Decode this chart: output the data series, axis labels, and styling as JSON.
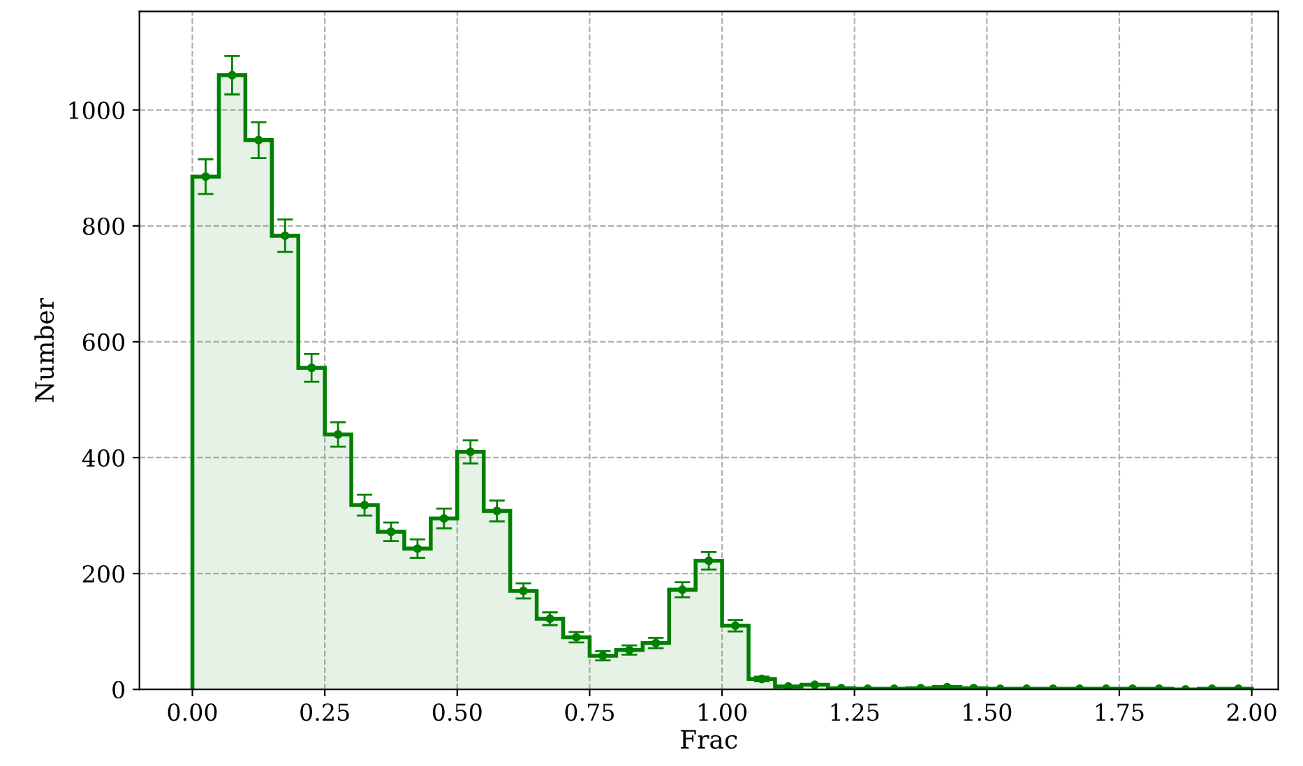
{
  "chart_data": {
    "type": "histogram",
    "xlabel": "Frac",
    "ylabel": "Number",
    "bins": [
      0.0,
      0.05,
      0.1,
      0.15,
      0.2,
      0.25,
      0.3,
      0.35,
      0.4,
      0.45,
      0.5,
      0.55,
      0.6,
      0.65,
      0.7,
      0.75,
      0.8,
      0.85,
      0.9,
      0.95,
      1.0,
      1.05,
      1.1,
      1.15,
      1.2,
      1.25,
      1.3,
      1.35,
      1.4,
      1.45,
      1.5,
      1.55,
      1.6,
      1.65,
      1.7,
      1.75,
      1.8,
      1.85,
      1.9,
      1.95,
      2.0
    ],
    "series": [
      {
        "color": "#008000",
        "values": [
          885,
          1060,
          948,
          783,
          555,
          440,
          318,
          272,
          243,
          295,
          410,
          308,
          170,
          122,
          90,
          58,
          68,
          80,
          172,
          222,
          110,
          18,
          5,
          8,
          2,
          1,
          1,
          2,
          4,
          2,
          1,
          1,
          1,
          1,
          1,
          1,
          1,
          0,
          1,
          1
        ]
      },
      {
        "type": "scatter",
        "color": "#008000",
        "x": [
          0.025,
          0.075,
          0.125,
          0.175,
          0.225,
          0.275,
          0.325,
          0.375,
          0.425,
          0.475,
          0.525,
          0.575,
          0.625,
          0.675,
          0.725,
          0.775,
          0.825,
          0.875,
          0.925,
          0.975,
          1.025,
          1.075,
          1.125,
          1.175,
          1.225,
          1.275,
          1.325,
          1.375,
          1.425,
          1.475,
          1.525,
          1.575,
          1.625,
          1.675,
          1.725,
          1.775,
          1.825,
          1.875,
          1.925,
          1.975
        ],
        "values": [
          885,
          1060,
          948,
          783,
          555,
          440,
          318,
          272,
          243,
          295,
          410,
          308,
          170,
          122,
          90,
          58,
          68,
          80,
          172,
          222,
          110,
          18,
          5,
          8,
          2,
          1,
          1,
          2,
          4,
          2,
          1,
          1,
          1,
          1,
          1,
          1,
          1,
          0,
          1,
          1
        ],
        "errors": [
          30,
          33,
          31,
          28,
          24,
          21,
          18,
          16,
          16,
          17,
          20,
          18,
          13,
          11,
          9,
          8,
          8,
          9,
          13,
          15,
          10,
          4,
          null,
          null,
          null,
          null,
          null,
          null,
          null,
          null,
          null,
          null,
          null,
          null,
          null,
          null,
          null,
          null,
          null,
          null
        ]
      }
    ],
    "marker": "circle",
    "xlim": [
      -0.1,
      2.05
    ],
    "ylim": [
      0,
      1170
    ],
    "xticks": [
      {
        "value": 0,
        "label": "0.00"
      },
      {
        "value": 0.25,
        "label": "0.25"
      },
      {
        "value": 0.5,
        "label": "0.50"
      },
      {
        "value": 0.75,
        "label": "0.75"
      },
      {
        "value": 1.0,
        "label": "1.00"
      },
      {
        "value": 1.25,
        "label": "1.25"
      },
      {
        "value": 1.5,
        "label": "1.50"
      },
      {
        "value": 1.75,
        "label": "1.75"
      },
      {
        "value": 2.0,
        "label": "2.00"
      }
    ],
    "yticks": [
      0,
      200,
      400,
      600,
      800,
      1000
    ],
    "grid": true
  }
}
